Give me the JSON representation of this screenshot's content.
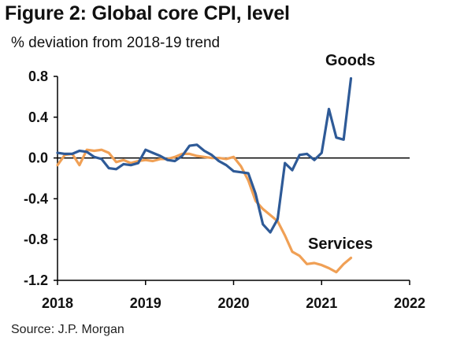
{
  "title": "Figure 2: Global core CPI, level",
  "subtitle": "% deviation from 2018-19 trend",
  "source": "Source: J.P. Morgan",
  "colors": {
    "goods": "#2e5a97",
    "services": "#f0a055",
    "axis": "#000000"
  },
  "chart_data": {
    "type": "line",
    "title": "Figure 2: Global core CPI, level",
    "subtitle": "% deviation from 2018-19 trend",
    "xlabel": "",
    "ylabel": "",
    "xlim": [
      2018,
      2022
    ],
    "ylim": [
      -1.2,
      0.8
    ],
    "x_ticks": [
      "2018",
      "2019",
      "2020",
      "2021",
      "2022"
    ],
    "y_ticks": [
      "0.8",
      "0.4",
      "0.0",
      "-0.4",
      "-0.8",
      "-1.2"
    ],
    "grid": false,
    "legend": "none",
    "series": [
      {
        "name": "Goods",
        "color": "#2e5a97",
        "x": [
          2018.0,
          2018.083,
          2018.167,
          2018.25,
          2018.333,
          2018.417,
          2018.5,
          2018.583,
          2018.667,
          2018.75,
          2018.833,
          2018.917,
          2019.0,
          2019.083,
          2019.167,
          2019.25,
          2019.333,
          2019.417,
          2019.5,
          2019.583,
          2019.667,
          2019.75,
          2019.833,
          2019.917,
          2020.0,
          2020.083,
          2020.167,
          2020.25,
          2020.333,
          2020.417,
          2020.5,
          2020.583,
          2020.667,
          2020.75,
          2020.833,
          2020.917,
          2021.0,
          2021.083,
          2021.167,
          2021.25,
          2021.333
        ],
        "values": [
          0.05,
          0.04,
          0.04,
          0.07,
          0.06,
          0.01,
          -0.01,
          -0.1,
          -0.11,
          -0.06,
          -0.07,
          -0.05,
          0.08,
          0.05,
          0.02,
          -0.02,
          -0.03,
          0.02,
          0.12,
          0.13,
          0.07,
          0.03,
          -0.03,
          -0.07,
          -0.13,
          -0.14,
          -0.15,
          -0.35,
          -0.65,
          -0.73,
          -0.6,
          -0.05,
          -0.12,
          0.03,
          0.04,
          -0.02,
          0.05,
          0.48,
          0.2,
          0.18,
          0.78
        ]
      },
      {
        "name": "Services",
        "color": "#f0a055",
        "x": [
          2018.0,
          2018.083,
          2018.167,
          2018.25,
          2018.333,
          2018.417,
          2018.5,
          2018.583,
          2018.667,
          2018.75,
          2018.833,
          2018.917,
          2019.0,
          2019.083,
          2019.167,
          2019.25,
          2019.333,
          2019.417,
          2019.5,
          2019.583,
          2019.667,
          2019.75,
          2019.833,
          2019.917,
          2020.0,
          2020.083,
          2020.167,
          2020.25,
          2020.333,
          2020.417,
          2020.5,
          2020.583,
          2020.667,
          2020.75,
          2020.833,
          2020.917,
          2021.0,
          2021.083,
          2021.167,
          2021.25,
          2021.333
        ],
        "values": [
          -0.07,
          0.03,
          0.04,
          -0.07,
          0.08,
          0.07,
          0.08,
          0.05,
          -0.04,
          -0.02,
          -0.05,
          -0.03,
          -0.02,
          -0.03,
          -0.01,
          -0.01,
          0.01,
          0.04,
          0.04,
          0.02,
          0.01,
          0.0,
          0.0,
          -0.01,
          0.01,
          -0.08,
          -0.22,
          -0.42,
          -0.5,
          -0.56,
          -0.62,
          -0.76,
          -0.92,
          -0.96,
          -1.04,
          -1.03,
          -1.05,
          -1.08,
          -1.12,
          -1.04,
          -0.98
        ]
      }
    ]
  }
}
